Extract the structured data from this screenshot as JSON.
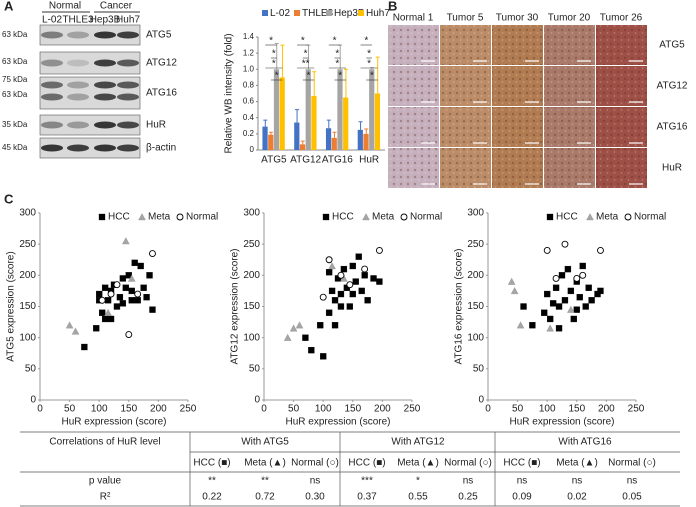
{
  "panel_a": {
    "label": "A",
    "groups": [
      "Normal",
      "Cancer"
    ],
    "lanes": [
      "L-02",
      "THLE3",
      "Hep3B",
      "Huh7"
    ],
    "markers": [
      "63 kDa",
      "63 kDa",
      "75 kDa",
      "63 kDa",
      "35 kDa",
      "45 kDa"
    ],
    "proteins": [
      "ATG5",
      "ATG12",
      "ATG16",
      "HuR",
      "β-actin"
    ]
  },
  "panel_b": {
    "label": "B",
    "columns": [
      "Normal 1",
      "Tumor 5",
      "Tumor 30",
      "Tumor 20",
      "Tumor 26"
    ],
    "rows": [
      "ATG5",
      "ATG12",
      "ATG16",
      "HuR"
    ]
  },
  "panel_c": {
    "label": "C"
  },
  "chart_data": [
    {
      "type": "bar",
      "y_label": "Relative WB intensity (fold)",
      "categories": [
        "ATG5",
        "ATG12",
        "ATG16",
        "HuR"
      ],
      "series": [
        {
          "name": "L-02",
          "color": "#4472c4",
          "values": [
            0.29,
            0.34,
            0.27,
            0.25
          ],
          "errors": [
            0.08,
            0.16,
            0.1,
            0.1
          ]
        },
        {
          "name": "THLE3",
          "color": "#ed7d31",
          "values": [
            0.19,
            0.07,
            0.15,
            0.2
          ],
          "errors": [
            0.03,
            0.04,
            0.07,
            0.06
          ]
        },
        {
          "name": "Hep3B",
          "color": "#a5a5a5",
          "values": [
            1.0,
            1.0,
            1.0,
            1.0
          ],
          "errors": [
            0.32,
            0.3,
            0.3,
            0.02
          ]
        },
        {
          "name": "Huh7",
          "color": "#ffc000",
          "values": [
            0.9,
            0.67,
            0.65,
            0.7
          ],
          "errors": [
            0.4,
            0.3,
            0.35,
            0.45
          ]
        }
      ],
      "significance": [
        [
          "*",
          "*",
          "*",
          "*"
        ],
        [
          "*",
          "*",
          "**",
          "*"
        ],
        [
          "*",
          "*",
          "*",
          "*"
        ],
        [
          "*",
          "*",
          "*",
          "*"
        ]
      ],
      "ylim": [
        0,
        1.4
      ],
      "yticks": [
        0,
        {
          "value": 0.2,
          "label": "0.2"
        },
        {
          "value": 0.4,
          "label": "0.4"
        },
        {
          "value": 0.6,
          "label": "0.6"
        },
        {
          "value": 0.8,
          "label": "0.8"
        },
        {
          "value": 1.0,
          "label": "1.0"
        },
        {
          "value": 1.2,
          "label": "1.2"
        },
        {
          "value": 1.4,
          "label": "1.4"
        }
      ]
    },
    {
      "type": "scatter",
      "x_label": "HuR expression (score)",
      "y_label": "ATG5 expression (score)",
      "xlim": [
        0,
        250
      ],
      "xticks": [
        0,
        50,
        100,
        150,
        200,
        250
      ],
      "ylim": [
        0,
        300
      ],
      "yticks": [
        0,
        50,
        100,
        150,
        200,
        250,
        300
      ],
      "series": [
        {
          "name": "HCC",
          "color": "#000000",
          "marker": "square",
          "x": [
            75,
            95,
            100,
            100,
            105,
            110,
            115,
            120,
            125,
            130,
            135,
            140,
            145,
            150,
            155,
            160,
            165,
            170,
            175,
            180,
            185,
            190,
            120,
            140,
            110,
            155
          ],
          "y": [
            85,
            115,
            160,
            170,
            140,
            130,
            160,
            175,
            185,
            150,
            165,
            195,
            180,
            200,
            175,
            220,
            160,
            215,
            180,
            165,
            200,
            145,
            130,
            155,
            180,
            160
          ]
        },
        {
          "name": "Meta",
          "color": "#a5a5a5",
          "marker": "triangle",
          "x": [
            50,
            60,
            145,
            155,
            115
          ],
          "y": [
            120,
            110,
            255,
            195,
            140
          ]
        },
        {
          "name": "Normal",
          "color": "#ffffff",
          "marker": "circle",
          "x": [
            120,
            130,
            150,
            190,
            105,
            165
          ],
          "y": [
            170,
            185,
            105,
            235,
            160,
            170
          ]
        }
      ]
    },
    {
      "type": "scatter",
      "x_label": "HuR expression (score)",
      "y_label": "ATG12 expression (score)",
      "xlim": [
        0,
        250
      ],
      "xticks": [
        0,
        50,
        100,
        150,
        200,
        250
      ],
      "ylim": [
        0,
        300
      ],
      "yticks": [
        0,
        50,
        100,
        150,
        200,
        250,
        300
      ],
      "series": [
        {
          "name": "HCC",
          "color": "#000000",
          "marker": "square",
          "x": [
            70,
            80,
            95,
            100,
            110,
            115,
            120,
            125,
            130,
            135,
            140,
            145,
            150,
            155,
            160,
            165,
            170,
            175,
            185,
            195,
            110,
            130,
            150,
            120
          ],
          "y": [
            100,
            80,
            120,
            70,
            140,
            175,
            120,
            195,
            170,
            210,
            180,
            150,
            215,
            190,
            230,
            175,
            200,
            160,
            195,
            190,
            205,
            150,
            170,
            160
          ]
        },
        {
          "name": "Meta",
          "color": "#a5a5a5",
          "marker": "triangle",
          "x": [
            40,
            50,
            60,
            115,
            135
          ],
          "y": [
            100,
            115,
            120,
            215,
            195
          ]
        },
        {
          "name": "Normal",
          "color": "#ffffff",
          "marker": "circle",
          "x": [
            110,
            130,
            145,
            170,
            195,
            100
          ],
          "y": [
            225,
            200,
            185,
            210,
            240,
            165
          ]
        }
      ]
    },
    {
      "type": "scatter",
      "x_label": "HuR expression (score)",
      "y_label": "ATG16 expression (score)",
      "xlim": [
        0,
        250
      ],
      "xticks": [
        0,
        50,
        100,
        150,
        200,
        250
      ],
      "ylim": [
        0,
        300
      ],
      "yticks": [
        0,
        50,
        100,
        150,
        200,
        250,
        300
      ],
      "series": [
        {
          "name": "HCC",
          "color": "#000000",
          "marker": "square",
          "x": [
            60,
            75,
            95,
            100,
            105,
            110,
            115,
            120,
            125,
            130,
            135,
            140,
            145,
            150,
            155,
            160,
            165,
            170,
            175,
            185,
            190,
            120,
            150
          ],
          "y": [
            150,
            120,
            140,
            170,
            130,
            155,
            180,
            150,
            200,
            160,
            210,
            175,
            130,
            190,
            165,
            215,
            150,
            180,
            160,
            170,
            175,
            115,
            145
          ]
        },
        {
          "name": "Meta",
          "color": "#a5a5a5",
          "marker": "triangle",
          "x": [
            40,
            45,
            55,
            105,
            140
          ],
          "y": [
            190,
            175,
            120,
            115,
            145
          ]
        },
        {
          "name": "Normal",
          "color": "#ffffff",
          "marker": "circle",
          "x": [
            100,
            130,
            150,
            190,
            115,
            160
          ],
          "y": [
            240,
            250,
            195,
            240,
            195,
            200
          ]
        }
      ]
    }
  ],
  "table": {
    "header": [
      "Correlations of HuR level",
      "With ATG5",
      "With ATG12",
      "With ATG16"
    ],
    "subheader": [
      "HCC (■)",
      "Meta (▲)",
      "Normal (○)",
      "HCC (■)",
      "Meta (▲)",
      "Normal (○)",
      "HCC (■)",
      "Meta (▲)",
      "Normal (○)"
    ],
    "rows": [
      [
        "p value",
        "**",
        "**",
        "ns",
        "***",
        "*",
        "ns",
        "ns",
        "ns",
        "ns"
      ],
      [
        "R²",
        "0.22",
        "0.72",
        "0.30",
        "0.37",
        "0.55",
        "0.25",
        "0.09",
        "0.02",
        "0.05"
      ]
    ]
  }
}
